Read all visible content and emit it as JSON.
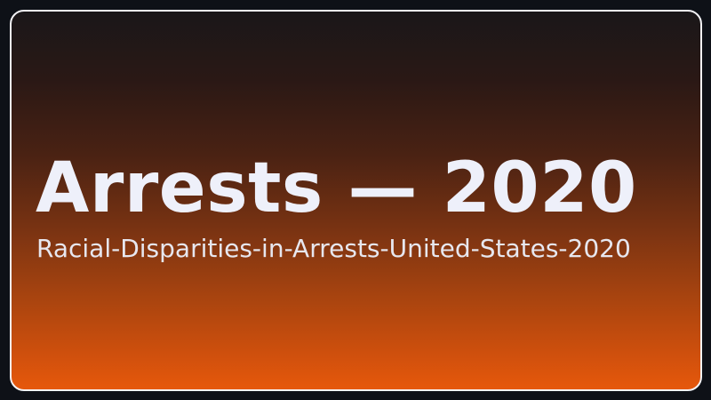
{
  "card": {
    "title": "Arrests — 2020",
    "subtitle": "Racial-Disparities-in-Arrests-United-States-2020"
  }
}
